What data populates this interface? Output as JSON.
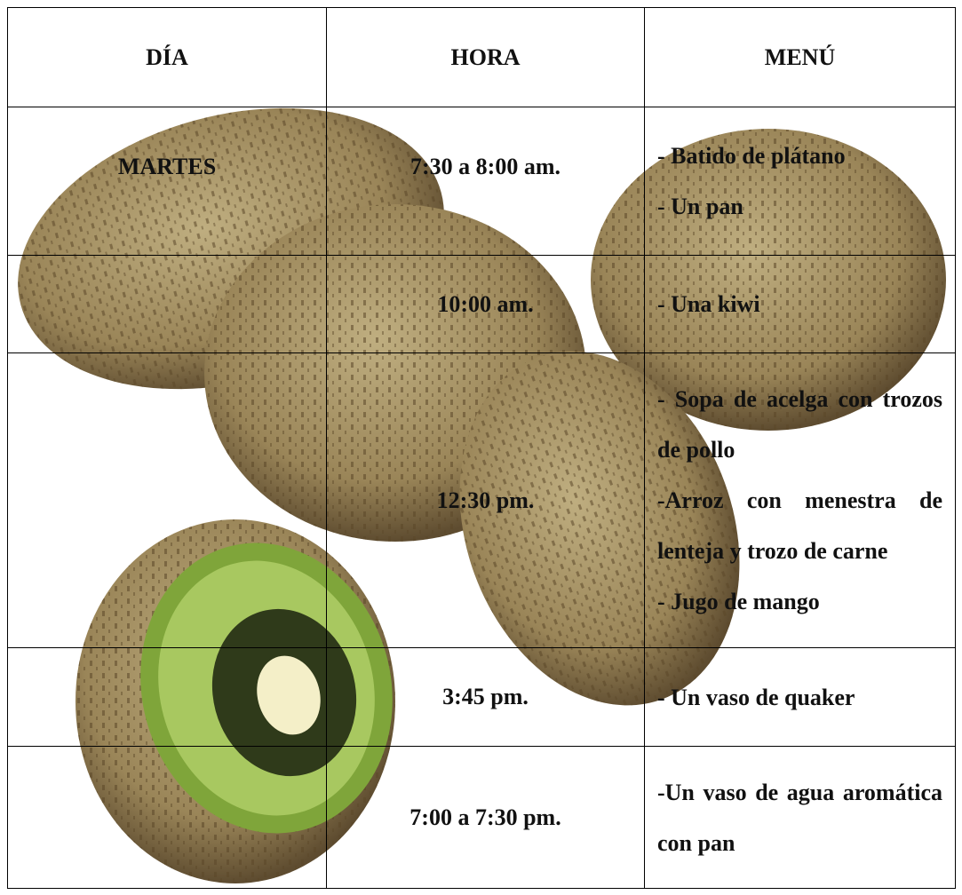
{
  "table": {
    "header": [
      "DÍA",
      "HORA",
      "MENÚ"
    ],
    "rows": [
      {
        "day": "MARTES",
        "time": "7:30 a 8:00 am.",
        "menu": [
          "- Batido de plátano",
          "- Un pan"
        ]
      },
      {
        "time": "10:00 am.",
        "menu": [
          "- Una kiwi"
        ]
      },
      {
        "time": "12:30 pm.",
        "menu": [
          "- Sopa de acelga con trozos de pollo",
          "-Arroz con menestra de lenteja y trozo de carne",
          "- Jugo de mango"
        ]
      },
      {
        "time": "3:45 pm.",
        "menu": [
          "- Un vaso de quaker"
        ]
      },
      {
        "time": "7:00 a 7:30 pm.",
        "menu": [
          "-Un vaso de agua aromática con pan"
        ]
      }
    ]
  }
}
